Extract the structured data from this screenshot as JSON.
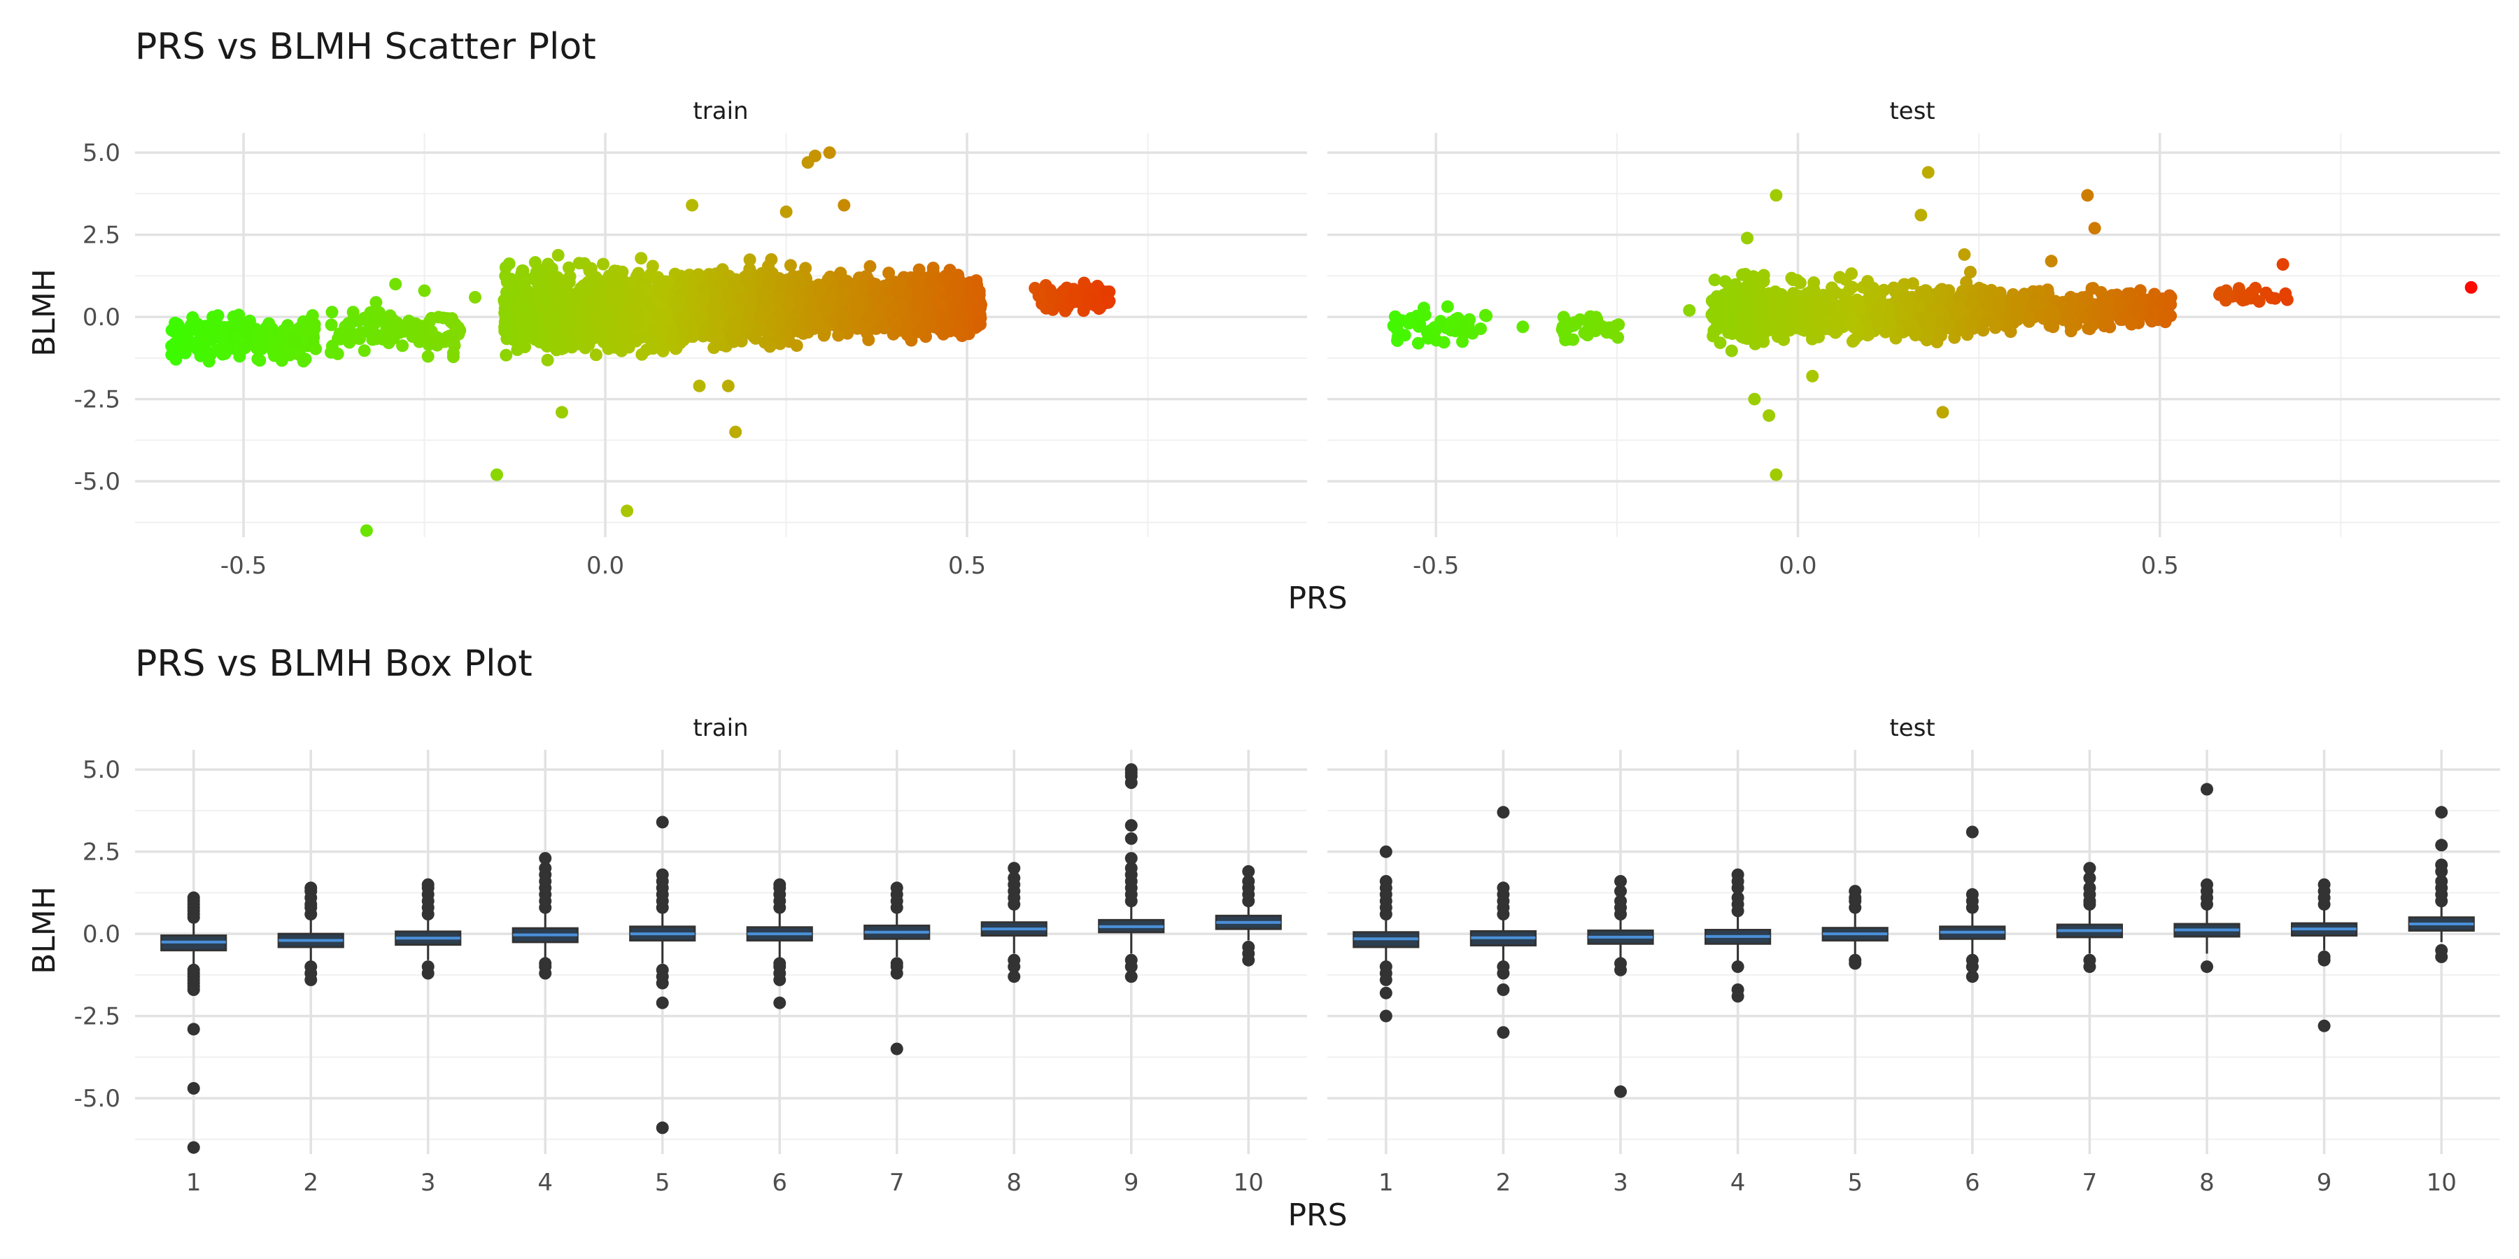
{
  "chart_data": [
    {
      "type": "scatter",
      "title": "PRS vs BLMH Scatter Plot",
      "xlabel": "PRS",
      "ylabel": "BLMH",
      "facets": [
        "train",
        "test"
      ],
      "xlim": [
        -0.65,
        0.97
      ],
      "ylim": [
        -6.7,
        5.6
      ],
      "x_ticks": [
        -0.5,
        0.0,
        0.5
      ],
      "x_tick_labels": [
        "-0.5",
        "0.0",
        "0.5"
      ],
      "y_ticks": [
        -5.0,
        -2.5,
        0.0,
        2.5,
        5.0
      ],
      "y_tick_labels": [
        "-5.0",
        "-2.5",
        "0.0",
        "2.5",
        "5.0"
      ],
      "grid": true,
      "color_scale": {
        "low": "#33ff00",
        "mid": "#b3c200",
        "high": "#ff0000"
      },
      "clusters": {
        "train": [
          {
            "x": [
              -0.6,
              -0.4
            ],
            "y": [
              -1.6,
              0.3
            ],
            "n": 220
          },
          {
            "x": [
              -0.38,
              -0.2
            ],
            "y": [
              -1.4,
              0.6
            ],
            "n": 110
          },
          {
            "x": [
              -0.14,
              0.12
            ],
            "y": [
              -1.6,
              2.0
            ],
            "n": 900
          },
          {
            "x": [
              0.12,
              0.28
            ],
            "y": [
              -1.2,
              1.9
            ],
            "n": 700
          },
          {
            "x": [
              0.28,
              0.52
            ],
            "y": [
              -0.9,
              1.6
            ],
            "n": 900
          },
          {
            "x": [
              0.59,
              0.7
            ],
            "y": [
              0.0,
              1.2
            ],
            "n": 90
          }
        ],
        "test": [
          {
            "x": [
              -0.56,
              -0.43
            ],
            "y": [
              -1.2,
              0.6
            ],
            "n": 45
          },
          {
            "x": [
              -0.33,
              -0.24
            ],
            "y": [
              -1.0,
              0.3
            ],
            "n": 35
          },
          {
            "x": [
              -0.12,
              0.06
            ],
            "y": [
              -1.2,
              1.6
            ],
            "n": 350
          },
          {
            "x": [
              0.06,
              0.3
            ],
            "y": [
              -1.0,
              1.4
            ],
            "n": 400
          },
          {
            "x": [
              0.3,
              0.52
            ],
            "y": [
              -0.6,
              1.1
            ],
            "n": 250
          },
          {
            "x": [
              0.58,
              0.68
            ],
            "y": [
              0.2,
              1.1
            ],
            "n": 25
          }
        ]
      },
      "outliers": {
        "train": [
          {
            "x": -0.33,
            "y": -6.5
          },
          {
            "x": 0.03,
            "y": -5.9
          },
          {
            "x": -0.15,
            "y": -4.8
          },
          {
            "x": 0.18,
            "y": -3.5
          },
          {
            "x": -0.06,
            "y": -2.9
          },
          {
            "x": 0.13,
            "y": -2.1
          },
          {
            "x": 0.17,
            "y": -2.1
          },
          {
            "x": 0.12,
            "y": 3.4
          },
          {
            "x": 0.25,
            "y": 3.2
          },
          {
            "x": 0.33,
            "y": 3.4
          },
          {
            "x": 0.28,
            "y": 4.7
          },
          {
            "x": 0.29,
            "y": 4.9
          },
          {
            "x": 0.31,
            "y": 5.0
          },
          {
            "x": -0.29,
            "y": 1.0
          },
          {
            "x": -0.25,
            "y": 0.8
          },
          {
            "x": -0.21,
            "y": -1.1
          },
          {
            "x": -0.18,
            "y": 0.6
          }
        ],
        "test": [
          {
            "x": -0.03,
            "y": -4.8
          },
          {
            "x": -0.04,
            "y": -3.0
          },
          {
            "x": -0.06,
            "y": -2.5
          },
          {
            "x": 0.2,
            "y": -2.9
          },
          {
            "x": -0.03,
            "y": 3.7
          },
          {
            "x": 0.18,
            "y": 4.4
          },
          {
            "x": 0.17,
            "y": 3.1
          },
          {
            "x": 0.4,
            "y": 3.7
          },
          {
            "x": 0.41,
            "y": 2.7
          },
          {
            "x": -0.07,
            "y": 2.4
          },
          {
            "x": 0.23,
            "y": 1.9
          },
          {
            "x": 0.35,
            "y": 1.7
          },
          {
            "x": 0.02,
            "y": -1.8
          },
          {
            "x": 0.93,
            "y": 0.9
          },
          {
            "x": 0.67,
            "y": 1.6
          },
          {
            "x": -0.38,
            "y": -0.3
          },
          {
            "x": -0.15,
            "y": 0.2
          }
        ]
      }
    },
    {
      "type": "box",
      "title": "PRS vs BLMH Box Plot",
      "xlabel": "PRS",
      "ylabel": "BLMH",
      "facets": [
        "train",
        "test"
      ],
      "categories": [
        "1",
        "2",
        "3",
        "4",
        "5",
        "6",
        "7",
        "8",
        "9",
        "10"
      ],
      "ylim": [
        -6.7,
        5.6
      ],
      "y_ticks": [
        -5.0,
        -2.5,
        0.0,
        2.5,
        5.0
      ],
      "y_tick_labels": [
        "-5.0",
        "-2.5",
        "0.0",
        "2.5",
        "5.0"
      ],
      "grid": true,
      "box_fill": "#2c3e50",
      "median_color": "#4a90d9",
      "point_color": "#333333",
      "series": {
        "train": [
          {
            "q1": -0.5,
            "median": -0.25,
            "q3": -0.05,
            "whisker_low": -1.0,
            "whisker_high": 0.45,
            "outliers": [
              -6.5,
              -4.7,
              -2.9,
              -1.7,
              -1.6,
              -1.5,
              -1.4,
              -1.3,
              -1.2,
              -1.1,
              0.5,
              0.6,
              0.7,
              0.8,
              0.9,
              1.0,
              1.1
            ]
          },
          {
            "q1": -0.4,
            "median": -0.2,
            "q3": 0.0,
            "whisker_low": -0.9,
            "whisker_high": 0.5,
            "outliers": [
              -1.4,
              -1.2,
              -1.0,
              0.6,
              0.8,
              0.9,
              1.1,
              1.3,
              1.4
            ]
          },
          {
            "q1": -0.33,
            "median": -0.13,
            "q3": 0.07,
            "whisker_low": -0.8,
            "whisker_high": 0.55,
            "outliers": [
              -1.2,
              -1.0,
              0.6,
              0.8,
              1.0,
              1.2,
              1.4,
              1.5
            ]
          },
          {
            "q1": -0.25,
            "median": -0.03,
            "q3": 0.17,
            "whisker_low": -0.8,
            "whisker_high": 0.7,
            "outliers": [
              -1.2,
              -1.0,
              -0.9,
              0.8,
              1.0,
              1.2,
              1.4,
              1.6,
              1.8,
              2.0,
              2.3
            ]
          },
          {
            "q1": -0.2,
            "median": 0.0,
            "q3": 0.22,
            "whisker_low": -0.9,
            "whisker_high": 0.75,
            "outliers": [
              -5.9,
              -2.1,
              -1.5,
              -1.3,
              -1.1,
              0.8,
              1.0,
              1.2,
              1.4,
              1.6,
              1.8,
              3.4
            ]
          },
          {
            "q1": -0.2,
            "median": 0.0,
            "q3": 0.2,
            "whisker_low": -0.8,
            "whisker_high": 0.7,
            "outliers": [
              -2.1,
              -1.4,
              -1.2,
              -1.0,
              -0.9,
              0.8,
              1.0,
              1.2,
              1.4,
              1.5
            ]
          },
          {
            "q1": -0.15,
            "median": 0.05,
            "q3": 0.25,
            "whisker_low": -0.7,
            "whisker_high": 0.7,
            "outliers": [
              -3.5,
              -1.2,
              -1.0,
              -0.9,
              0.8,
              1.0,
              1.2,
              1.4
            ]
          },
          {
            "q1": -0.05,
            "median": 0.15,
            "q3": 0.35,
            "whisker_low": -0.6,
            "whisker_high": 0.85,
            "outliers": [
              -1.3,
              -1.0,
              -0.8,
              0.9,
              1.1,
              1.3,
              1.5,
              1.7,
              2.0
            ]
          },
          {
            "q1": 0.05,
            "median": 0.22,
            "q3": 0.42,
            "whisker_low": -0.6,
            "whisker_high": 0.95,
            "outliers": [
              -1.3,
              -1.0,
              -0.8,
              1.0,
              1.2,
              1.4,
              1.6,
              1.8,
              2.0,
              2.3,
              2.9,
              3.3,
              4.6,
              4.8,
              4.9,
              5.0
            ]
          },
          {
            "q1": 0.15,
            "median": 0.35,
            "q3": 0.55,
            "whisker_low": -0.2,
            "whisker_high": 0.95,
            "outliers": [
              -0.8,
              -0.6,
              -0.4,
              1.0,
              1.2,
              1.4,
              1.6,
              1.9
            ]
          }
        ],
        "test": [
          {
            "q1": -0.4,
            "median": -0.15,
            "q3": 0.05,
            "whisker_low": -0.9,
            "whisker_high": 0.5,
            "outliers": [
              -2.5,
              -1.8,
              -1.4,
              -1.2,
              -1.0,
              0.6,
              0.8,
              1.0,
              1.2,
              1.4,
              1.6,
              2.5
            ]
          },
          {
            "q1": -0.35,
            "median": -0.12,
            "q3": 0.08,
            "whisker_low": -0.85,
            "whisker_high": 0.55,
            "outliers": [
              -3.0,
              -1.7,
              -1.2,
              -1.0,
              0.6,
              0.8,
              1.0,
              1.2,
              1.4,
              3.7
            ]
          },
          {
            "q1": -0.3,
            "median": -0.1,
            "q3": 0.1,
            "whisker_low": -0.85,
            "whisker_high": 0.55,
            "outliers": [
              -4.8,
              -1.1,
              -0.9,
              0.6,
              0.8,
              1.0,
              1.3,
              1.6
            ]
          },
          {
            "q1": -0.3,
            "median": -0.08,
            "q3": 0.12,
            "whisker_low": -0.85,
            "whisker_high": 0.6,
            "outliers": [
              -1.9,
              -1.7,
              -1.0,
              0.7,
              0.9,
              1.1,
              1.4,
              1.6,
              1.8
            ]
          },
          {
            "q1": -0.2,
            "median": 0.0,
            "q3": 0.18,
            "whisker_low": -0.7,
            "whisker_high": 0.7,
            "outliers": [
              -0.9,
              -0.8,
              0.8,
              1.0,
              1.1,
              1.3
            ]
          },
          {
            "q1": -0.15,
            "median": 0.05,
            "q3": 0.22,
            "whisker_low": -0.7,
            "whisker_high": 0.7,
            "outliers": [
              -1.3,
              -1.0,
              -0.8,
              0.8,
              1.0,
              1.2,
              3.1
            ]
          },
          {
            "q1": -0.1,
            "median": 0.1,
            "q3": 0.28,
            "whisker_low": -0.6,
            "whisker_high": 0.8,
            "outliers": [
              -1.0,
              -0.8,
              0.9,
              1.0,
              1.2,
              1.4,
              1.7,
              2.0
            ]
          },
          {
            "q1": -0.08,
            "median": 0.12,
            "q3": 0.3,
            "whisker_low": -0.6,
            "whisker_high": 0.8,
            "outliers": [
              -1.0,
              0.9,
              1.1,
              1.3,
              1.5,
              4.4
            ]
          },
          {
            "q1": -0.05,
            "median": 0.15,
            "q3": 0.32,
            "whisker_low": -0.5,
            "whisker_high": 0.85,
            "outliers": [
              -2.8,
              -0.8,
              -0.7,
              0.9,
              1.1,
              1.3,
              1.5
            ]
          },
          {
            "q1": 0.1,
            "median": 0.3,
            "q3": 0.5,
            "whisker_low": -0.25,
            "whisker_high": 0.95,
            "outliers": [
              -0.7,
              -0.5,
              1.0,
              1.2,
              1.4,
              1.6,
              1.9,
              2.1,
              2.7,
              3.7
            ]
          }
        ]
      }
    }
  ]
}
